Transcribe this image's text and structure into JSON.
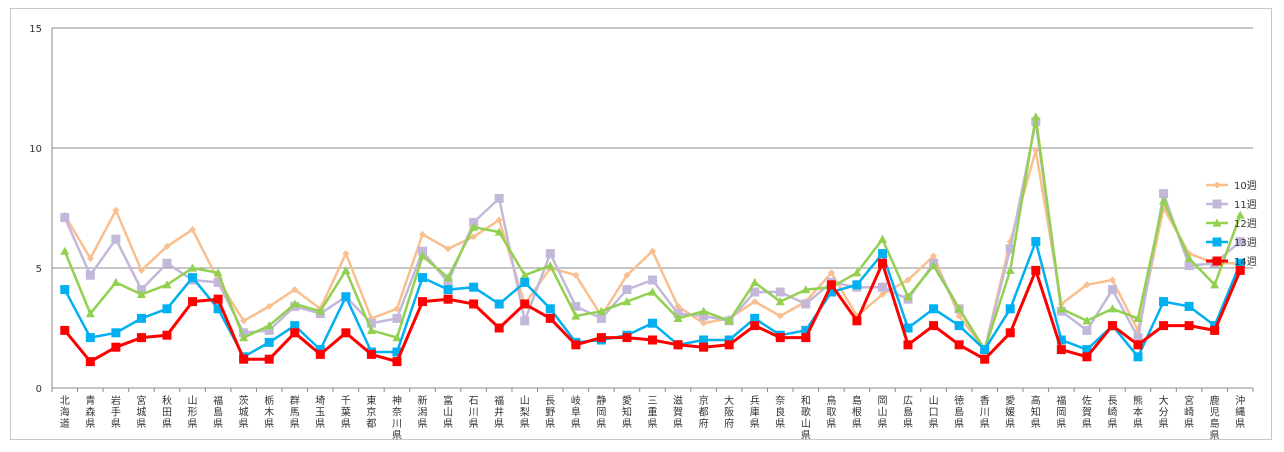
{
  "chart_data": {
    "type": "line",
    "title": "",
    "xlabel": "",
    "ylabel": "",
    "ylim": [
      0,
      15
    ],
    "yticks": [
      0,
      5,
      10,
      15
    ],
    "grid": true,
    "legend_position": "right",
    "categories": [
      "北海道",
      "青森県",
      "岩手県",
      "宮城県",
      "秋田県",
      "山形県",
      "福島県",
      "茨城県",
      "栃木県",
      "群馬県",
      "埼玉県",
      "千葉県",
      "東京都",
      "神奈川県",
      "新潟県",
      "富山県",
      "石川県",
      "福井県",
      "山梨県",
      "長野県",
      "岐阜県",
      "静岡県",
      "愛知県",
      "三重県",
      "滋賀県",
      "京都府",
      "大阪府",
      "兵庫県",
      "奈良県",
      "和歌山県",
      "鳥取県",
      "島根県",
      "岡山県",
      "広島県",
      "山口県",
      "徳島県",
      "香川県",
      "愛媛県",
      "高知県",
      "福岡県",
      "佐賀県",
      "長崎県",
      "熊本県",
      "大分県",
      "宮崎県",
      "鹿児島県",
      "沖縄県"
    ],
    "series": [
      {
        "name": "10週",
        "color": "#f9bf8f",
        "marker": "diamond",
        "values": [
          7.2,
          5.4,
          7.4,
          4.9,
          5.9,
          6.6,
          4.5,
          2.8,
          3.4,
          4.1,
          3.3,
          5.6,
          2.9,
          3.3,
          6.4,
          5.8,
          6.3,
          7.0,
          3.5,
          5.0,
          4.7,
          3.0,
          4.7,
          5.7,
          3.4,
          2.7,
          2.9,
          3.6,
          3.0,
          3.6,
          4.8,
          3.0,
          3.9,
          4.5,
          5.5,
          3.0,
          1.6,
          6.1,
          9.9,
          3.5,
          4.3,
          4.5,
          2.4,
          7.5,
          5.6,
          5.2,
          5.2
        ]
      },
      {
        "name": "11週",
        "color": "#c3b8d9",
        "marker": "square",
        "values": [
          7.1,
          4.7,
          6.2,
          4.1,
          5.2,
          4.5,
          4.4,
          2.3,
          2.4,
          3.4,
          3.1,
          3.8,
          2.7,
          2.9,
          5.7,
          4.4,
          6.9,
          7.9,
          2.8,
          5.6,
          3.4,
          2.9,
          4.1,
          4.5,
          3.1,
          3.0,
          2.8,
          4.0,
          4.0,
          3.5,
          4.4,
          4.2,
          4.2,
          3.7,
          5.2,
          3.3,
          1.6,
          5.8,
          11.1,
          3.2,
          2.4,
          4.1,
          2.1,
          8.1,
          5.1,
          5.2,
          6.1
        ]
      },
      {
        "name": "12週",
        "color": "#92d050",
        "marker": "triangle",
        "values": [
          5.7,
          3.1,
          4.4,
          3.9,
          4.3,
          5.0,
          4.8,
          2.1,
          2.6,
          3.5,
          3.2,
          4.9,
          2.4,
          2.1,
          5.5,
          4.6,
          6.7,
          6.5,
          4.7,
          5.1,
          3.0,
          3.2,
          3.6,
          4.0,
          2.9,
          3.2,
          2.8,
          4.4,
          3.6,
          4.1,
          4.2,
          4.8,
          6.2,
          3.8,
          5.1,
          3.3,
          1.6,
          4.9,
          11.3,
          3.3,
          2.8,
          3.3,
          2.9,
          7.8,
          5.4,
          4.3,
          7.2
        ]
      },
      {
        "name": "13週",
        "color": "#00b0f0",
        "marker": "square",
        "values": [
          4.1,
          2.1,
          2.3,
          2.9,
          3.3,
          4.6,
          3.3,
          1.3,
          1.9,
          2.6,
          1.6,
          3.8,
          1.5,
          1.5,
          4.6,
          4.1,
          4.2,
          3.5,
          4.4,
          3.3,
          1.9,
          2.0,
          2.2,
          2.7,
          1.8,
          2.0,
          2.0,
          2.9,
          2.2,
          2.4,
          4.0,
          4.3,
          5.6,
          2.5,
          3.3,
          2.6,
          1.6,
          3.3,
          6.1,
          2.0,
          1.6,
          2.6,
          1.3,
          3.6,
          3.4,
          2.6,
          5.2
        ]
      },
      {
        "name": "14週",
        "color": "#ff0000",
        "marker": "square",
        "values": [
          2.4,
          1.1,
          1.7,
          2.1,
          2.2,
          3.6,
          3.7,
          1.2,
          1.2,
          2.3,
          1.4,
          2.3,
          1.4,
          1.1,
          3.6,
          3.7,
          3.5,
          2.5,
          3.5,
          2.9,
          1.8,
          2.1,
          2.1,
          2.0,
          1.8,
          1.7,
          1.8,
          2.6,
          2.1,
          2.1,
          4.3,
          2.8,
          5.2,
          1.8,
          2.6,
          1.8,
          1.2,
          2.3,
          4.9,
          1.6,
          1.3,
          2.6,
          1.8,
          2.6,
          2.6,
          2.4,
          4.9
        ]
      }
    ]
  }
}
